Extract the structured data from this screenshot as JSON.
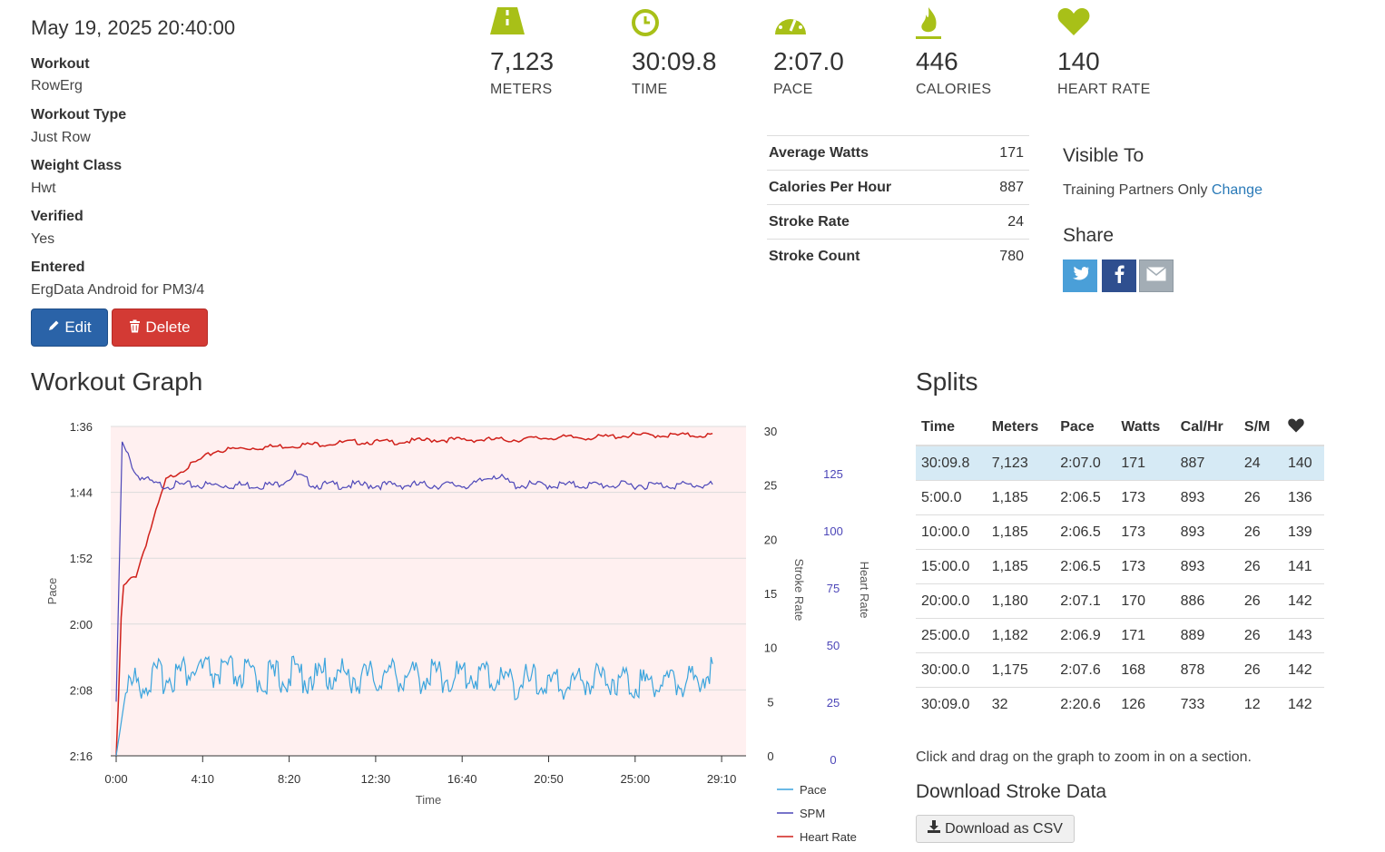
{
  "workout": {
    "date": "May 19, 2025 20:40:00",
    "fields": [
      {
        "label": "Workout",
        "value": "RowErg"
      },
      {
        "label": "Workout Type",
        "value": "Just Row"
      },
      {
        "label": "Weight Class",
        "value": "Hwt"
      },
      {
        "label": "Verified",
        "value": "Yes"
      },
      {
        "label": "Entered",
        "value": "ErgData Android for PM3/4"
      }
    ],
    "edit_label": "Edit",
    "delete_label": "Delete"
  },
  "stats": [
    {
      "icon": "road-icon",
      "value": "7,123",
      "label": "METERS"
    },
    {
      "icon": "clock-icon",
      "value": "30:09.8",
      "label": "TIME"
    },
    {
      "icon": "speedometer-icon",
      "value": "2:07.0",
      "label": "PACE"
    },
    {
      "icon": "flame-icon",
      "value": "446",
      "label": "CALORIES"
    },
    {
      "icon": "heart-icon",
      "value": "140",
      "label": "HEART RATE"
    }
  ],
  "accent_color": "#a8c018",
  "details": [
    {
      "label": "Average Watts",
      "value": "171"
    },
    {
      "label": "Calories Per Hour",
      "value": "887"
    },
    {
      "label": "Stroke Rate",
      "value": "24"
    },
    {
      "label": "Stroke Count",
      "value": "780"
    }
  ],
  "visibility": {
    "title": "Visible To",
    "value": "Training Partners Only",
    "change_label": "Change"
  },
  "share": {
    "title": "Share",
    "buttons": [
      {
        "icon": "twitter-icon",
        "color": "#4a9fd8"
      },
      {
        "icon": "facebook-icon",
        "color": "#2f4f8f"
      },
      {
        "icon": "email-icon",
        "color": "#a3adb5"
      }
    ]
  },
  "graph": {
    "title": "Workout Graph",
    "hint": "Click and drag on the graph to zoom in on a section."
  },
  "chart_data": {
    "type": "line",
    "xlabel": "Time",
    "x_ticks": [
      "0:00",
      "4:10",
      "8:20",
      "12:30",
      "16:40",
      "20:50",
      "25:00",
      "29:10"
    ],
    "pace_axis": {
      "label": "Pace",
      "ticks": [
        "1:36",
        "1:44",
        "1:52",
        "2:00",
        "2:08",
        "2:16"
      ]
    },
    "stroke_axis": {
      "label": "Stroke Rate",
      "ticks": [
        "30",
        "25",
        "20",
        "15",
        "10",
        "5",
        "0"
      ]
    },
    "hr_axis": {
      "label": "Heart Rate",
      "ticks": [
        "125",
        "100",
        "75",
        "50",
        "25",
        "0"
      ]
    },
    "series": [
      {
        "name": "Pace",
        "color": "#3aa4dd",
        "x_minutes": [
          0,
          0.5,
          1,
          1.5,
          2,
          3,
          4,
          5,
          6,
          7,
          8,
          9,
          10,
          11,
          12,
          13,
          14,
          15,
          16,
          17,
          18,
          19,
          20,
          21,
          22,
          23,
          24,
          25,
          26,
          27,
          28,
          29,
          30
        ],
        "seconds_per_500m": [
          136,
          128,
          127,
          127,
          126.5,
          126,
          125.5,
          126,
          126,
          126.5,
          126.5,
          126,
          126.5,
          126,
          126.5,
          126.5,
          126,
          126.5,
          126,
          126.5,
          126,
          126.5,
          127,
          127,
          127.5,
          127,
          126.5,
          126.5,
          127,
          127,
          127,
          127,
          125
        ]
      },
      {
        "name": "SPM",
        "color": "#4c46b8",
        "x_minutes": [
          0,
          0.3,
          1,
          2,
          3,
          4,
          5,
          6,
          7,
          8,
          9,
          10,
          11,
          12,
          13,
          14,
          15,
          16,
          17,
          18,
          19,
          20,
          21,
          22,
          23,
          24,
          25,
          26,
          27,
          28,
          29,
          30
        ],
        "values": [
          5,
          29,
          26,
          25,
          25,
          25,
          25,
          25,
          25,
          25,
          26,
          25,
          25,
          25,
          25,
          25,
          25,
          25,
          25,
          25,
          26,
          25,
          25,
          25,
          25,
          25,
          25,
          25,
          25,
          25,
          25,
          25
        ]
      },
      {
        "name": "Heart Rate",
        "color": "#d0201a",
        "x_minutes": [
          0,
          0.1,
          0.3,
          1,
          2.5,
          3,
          4,
          5,
          6,
          8,
          10,
          12,
          14,
          16,
          18,
          20,
          22,
          24,
          26,
          28,
          30
        ],
        "values": [
          0,
          20,
          75,
          80,
          122,
          125,
          130,
          135,
          136,
          137,
          138,
          139,
          139,
          140,
          140,
          140,
          141,
          141,
          142,
          142,
          142
        ]
      }
    ],
    "legend_placement": "bottom-right"
  },
  "splits": {
    "title": "Splits",
    "columns": [
      "Time",
      "Meters",
      "Pace",
      "Watts",
      "Cal/Hr",
      "S/M",
      "heart-icon"
    ],
    "rows": [
      [
        "30:09.8",
        "7,123",
        "2:07.0",
        "171",
        "887",
        "24",
        "140"
      ],
      [
        "5:00.0",
        "1,185",
        "2:06.5",
        "173",
        "893",
        "26",
        "136"
      ],
      [
        "10:00.0",
        "1,185",
        "2:06.5",
        "173",
        "893",
        "26",
        "139"
      ],
      [
        "15:00.0",
        "1,185",
        "2:06.5",
        "173",
        "893",
        "26",
        "141"
      ],
      [
        "20:00.0",
        "1,180",
        "2:07.1",
        "170",
        "886",
        "26",
        "142"
      ],
      [
        "25:00.0",
        "1,182",
        "2:06.9",
        "171",
        "889",
        "26",
        "143"
      ],
      [
        "30:00.0",
        "1,175",
        "2:07.6",
        "168",
        "878",
        "26",
        "142"
      ],
      [
        "30:09.0",
        "32",
        "2:20.6",
        "126",
        "733",
        "12",
        "142"
      ]
    ]
  },
  "download": {
    "title": "Download Stroke Data",
    "button_label": "Download as CSV"
  }
}
